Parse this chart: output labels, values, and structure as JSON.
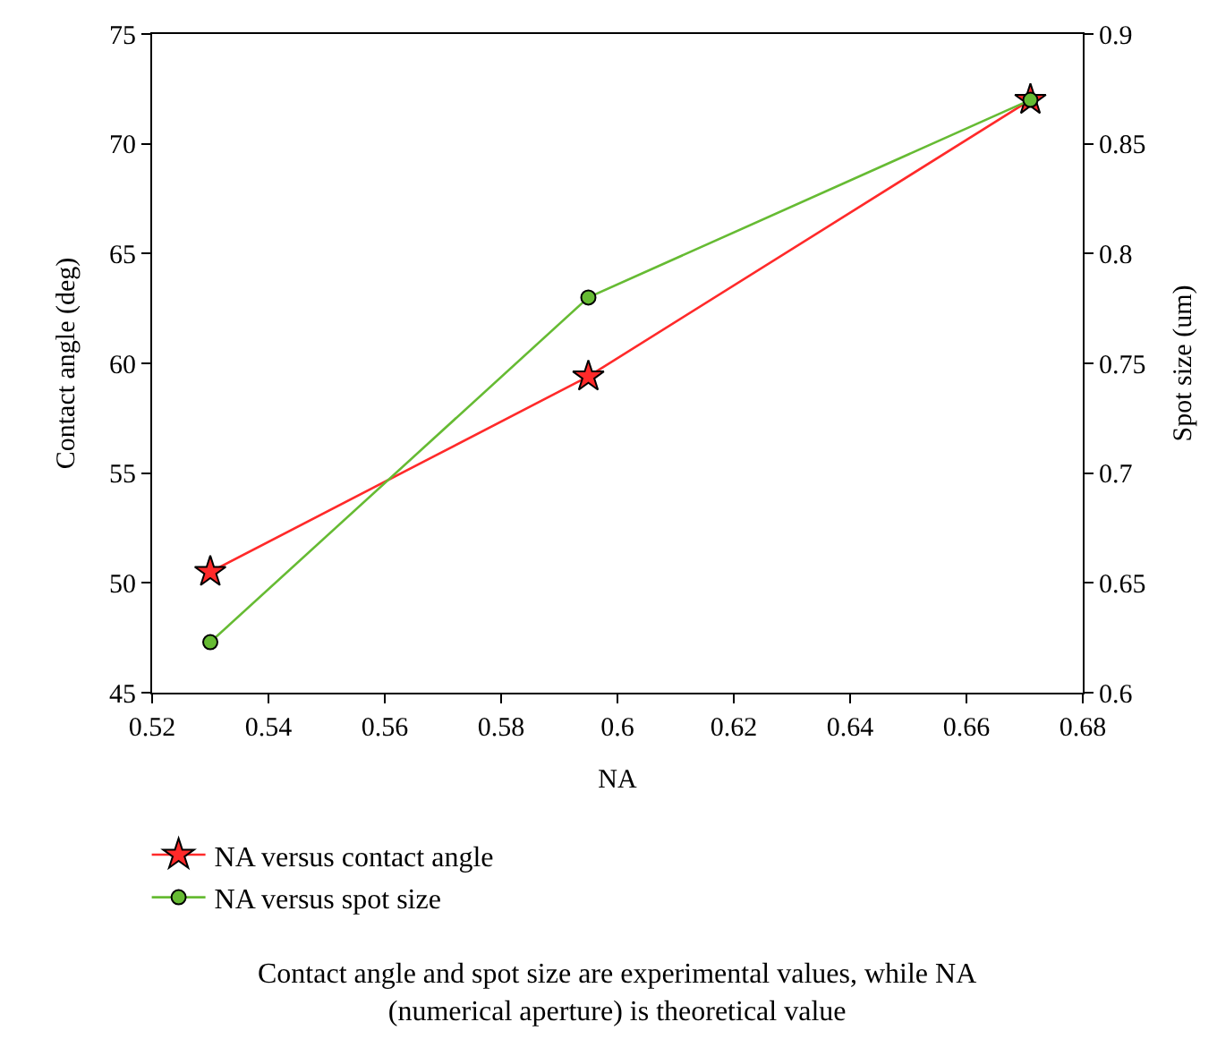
{
  "chart_data": {
    "type": "line",
    "x": [
      0.53,
      0.595,
      0.671
    ],
    "series": [
      {
        "name": "NA versus contact angle",
        "color": "#ff2a2a",
        "marker": "star",
        "values": [
          50.5,
          59.4,
          72
        ]
      },
      {
        "name": "NA versus spot size",
        "color": "#66bb33",
        "marker": "circle",
        "axis": "y2",
        "values": [
          0.623,
          0.78,
          0.87
        ]
      }
    ],
    "xlabel": "NA",
    "ylabel": "Contact angle (deg)",
    "y2label": "Spot size (um)",
    "xlim": [
      0.52,
      0.68
    ],
    "xticks": [
      0.52,
      0.54,
      0.56,
      0.58,
      0.6,
      0.62,
      0.64,
      0.66,
      0.68
    ],
    "ylim": [
      45,
      75
    ],
    "yticks": [
      45,
      50,
      55,
      60,
      65,
      70,
      75
    ],
    "y2lim": [
      0.6,
      0.9
    ],
    "y2ticks": [
      0.6,
      0.65,
      0.7,
      0.75,
      0.8,
      0.85,
      0.9
    ],
    "legend": "bottom",
    "line_style": "solid",
    "annotations": [
      "Contact angle and spot size are experimental values, while NA (numerical aperture) is theoretical value"
    ]
  }
}
